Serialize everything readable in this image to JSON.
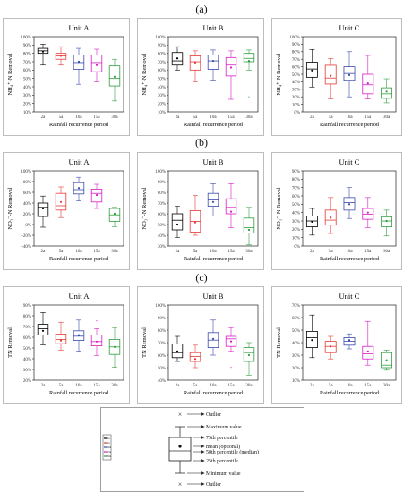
{
  "sections": [
    "(a)",
    "(b)",
    "(c)"
  ],
  "categories": [
    "2a",
    "5a",
    "10a",
    "15a",
    "30a"
  ],
  "category_colors": [
    "#000000",
    "#e53935",
    "#3949ab",
    "#d81bc4",
    "#2e9d3f"
  ],
  "chart_data": [
    {
      "type": "box",
      "panel": "a-A",
      "title": "Unit A",
      "xlabel": "Rainfall recurrence period",
      "ylabel": "NH₄⁺-N Removal",
      "ylim": [
        10,
        100
      ],
      "yticks": [
        "10%",
        "20%",
        "30%",
        "40%",
        "50%",
        "60%",
        "70%",
        "80%",
        "90%",
        "100%"
      ],
      "boxes": [
        {
          "cat": "2a",
          "min": 66,
          "q1": 80,
          "median": 83,
          "q3": 86,
          "max": 91,
          "mean": 82,
          "outliers": []
        },
        {
          "cat": "5a",
          "min": 66,
          "q1": 73,
          "median": 77,
          "q3": 80,
          "max": 88,
          "mean": 77,
          "outliers": []
        },
        {
          "cat": "10a",
          "min": 43,
          "q1": 61,
          "median": 69,
          "q3": 78,
          "max": 86,
          "mean": 70,
          "outliers": []
        },
        {
          "cat": "15a",
          "min": 46,
          "q1": 58,
          "median": 69,
          "q3": 78,
          "max": 85,
          "mean": 66,
          "outliers": []
        },
        {
          "cat": "30a",
          "min": 23,
          "q1": 41,
          "median": 50,
          "q3": 65,
          "max": 73,
          "mean": 52,
          "outliers": []
        }
      ]
    },
    {
      "type": "box",
      "panel": "a-B",
      "title": "Unit B",
      "xlabel": "Rainfall recurrence period",
      "ylabel": "NH₄⁺-N Removal",
      "ylim": [
        10,
        100
      ],
      "yticks": [
        "10%",
        "20%",
        "30%",
        "40%",
        "50%",
        "60%",
        "70%",
        "80%",
        "90%",
        "100%"
      ],
      "boxes": [
        {
          "cat": "2a",
          "min": 60,
          "q1": 66,
          "median": 71,
          "q3": 81,
          "max": 88,
          "mean": 74,
          "outliers": []
        },
        {
          "cat": "5a",
          "min": 46,
          "q1": 60,
          "median": 70,
          "q3": 77,
          "max": 83,
          "mean": 69,
          "outliers": []
        },
        {
          "cat": "10a",
          "min": 48,
          "q1": 61,
          "median": 71,
          "q3": 78,
          "max": 84,
          "mean": 71,
          "outliers": []
        },
        {
          "cat": "15a",
          "min": 25,
          "q1": 53,
          "median": 66,
          "q3": 75,
          "max": 83,
          "mean": 63,
          "outliers": []
        },
        {
          "cat": "30a",
          "min": 60,
          "q1": 70,
          "median": 74,
          "q3": 80,
          "max": 84,
          "mean": 71,
          "outliers": [
            28
          ]
        }
      ]
    },
    {
      "type": "box",
      "panel": "a-C",
      "title": "Unit C",
      "xlabel": "Rainfall recurrence period",
      "ylabel": "NH₄⁺-N Removal",
      "ylim": [
        0,
        100
      ],
      "yticks": [
        "0%",
        "10%",
        "20%",
        "30%",
        "40%",
        "50%",
        "60%",
        "70%",
        "80%",
        "90%",
        "100%"
      ],
      "boxes": [
        {
          "cat": "2a",
          "min": 33,
          "q1": 46,
          "median": 57,
          "q3": 66,
          "max": 83,
          "mean": 55,
          "outliers": []
        },
        {
          "cat": "5a",
          "min": 17,
          "q1": 37,
          "median": 45,
          "q3": 62,
          "max": 71,
          "mean": 48,
          "outliers": []
        },
        {
          "cat": "10a",
          "min": 20,
          "q1": 42,
          "median": 51,
          "q3": 60,
          "max": 80,
          "mean": 49,
          "outliers": []
        },
        {
          "cat": "15a",
          "min": 17,
          "q1": 24,
          "median": 36,
          "q3": 50,
          "max": 75,
          "mean": 38,
          "outliers": []
        },
        {
          "cat": "30a",
          "min": 12,
          "q1": 18,
          "median": 24,
          "q3": 32,
          "max": 44,
          "mean": 27,
          "outliers": []
        }
      ]
    },
    {
      "type": "box",
      "panel": "b-A",
      "title": "Unit A",
      "xlabel": "Rainfall recurrence period",
      "ylabel": "NO₃⁻-N Removal",
      "ylim": [
        -40,
        100
      ],
      "yticks": [
        "-40%",
        "-20%",
        "0%",
        "20%",
        "40%",
        "60%",
        "80%",
        "100%"
      ],
      "boxes": [
        {
          "cat": "2a",
          "min": -5,
          "q1": 15,
          "median": 32,
          "q3": 40,
          "max": 53,
          "mean": 30,
          "outliers": []
        },
        {
          "cat": "5a",
          "min": 13,
          "q1": 27,
          "median": 35,
          "q3": 58,
          "max": 70,
          "mean": 42,
          "outliers": []
        },
        {
          "cat": "10a",
          "min": 44,
          "q1": 57,
          "median": 65,
          "q3": 78,
          "max": 88,
          "mean": 68,
          "outliers": []
        },
        {
          "cat": "15a",
          "min": 30,
          "q1": 42,
          "median": 58,
          "q3": 66,
          "max": 75,
          "mean": 55,
          "outliers": []
        },
        {
          "cat": "30a",
          "min": -4,
          "q1": 6,
          "median": 18,
          "q3": 30,
          "max": 32,
          "mean": 20,
          "outliers": []
        }
      ]
    },
    {
      "type": "box",
      "panel": "b-B",
      "title": "Unit B",
      "xlabel": "Rainfall recurrence period",
      "ylabel": "NO₃⁻-N Removal",
      "ylim": [
        30,
        100
      ],
      "yticks": [
        "30%",
        "40%",
        "50%",
        "60%",
        "70%",
        "80%",
        "90%",
        "100%"
      ],
      "boxes": [
        {
          "cat": "2a",
          "min": 38,
          "q1": 45,
          "median": 54,
          "q3": 60,
          "max": 67,
          "mean": 50,
          "outliers": []
        },
        {
          "cat": "5a",
          "min": 40,
          "q1": 43,
          "median": 53,
          "q3": 63,
          "max": 77,
          "mean": 52,
          "outliers": []
        },
        {
          "cat": "10a",
          "min": 58,
          "q1": 67,
          "median": 73,
          "q3": 79,
          "max": 88,
          "mean": 71,
          "outliers": []
        },
        {
          "cat": "15a",
          "min": 47,
          "q1": 60,
          "median": 66,
          "q3": 74,
          "max": 88,
          "mean": 62,
          "outliers": []
        },
        {
          "cat": "30a",
          "min": 31,
          "q1": 42,
          "median": 47,
          "q3": 56,
          "max": 66,
          "mean": 45,
          "outliers": []
        }
      ]
    },
    {
      "type": "box",
      "panel": "b-C",
      "title": "Unit C",
      "xlabel": "Rainfall recurrence period",
      "ylabel": "NO₃⁻-N Removal",
      "ylim": [
        0,
        90
      ],
      "yticks": [
        "0%",
        "10%",
        "20%",
        "30%",
        "40%",
        "50%",
        "60%",
        "70%",
        "80%",
        "90%"
      ],
      "boxes": [
        {
          "cat": "2a",
          "min": 13,
          "q1": 23,
          "median": 30,
          "q3": 36,
          "max": 45,
          "mean": 29,
          "outliers": []
        },
        {
          "cat": "5a",
          "min": 15,
          "q1": 25,
          "median": 31,
          "q3": 43,
          "max": 58,
          "mean": 34,
          "outliers": []
        },
        {
          "cat": "10a",
          "min": 33,
          "q1": 43,
          "median": 52,
          "q3": 58,
          "max": 70,
          "mean": 50,
          "outliers": []
        },
        {
          "cat": "15a",
          "min": 22,
          "q1": 32,
          "median": 38,
          "q3": 45,
          "max": 58,
          "mean": 40,
          "outliers": []
        },
        {
          "cat": "30a",
          "min": 12,
          "q1": 23,
          "median": 30,
          "q3": 35,
          "max": 43,
          "mean": 30,
          "outliers": []
        }
      ]
    },
    {
      "type": "box",
      "panel": "c-A",
      "title": "Unit A",
      "xlabel": "Rainfall recurrence period",
      "ylabel": "TN Removal",
      "ylim": [
        20,
        90
      ],
      "yticks": [
        "20%",
        "30%",
        "40%",
        "50%",
        "60%",
        "70%",
        "80%",
        "90%"
      ],
      "boxes": [
        {
          "cat": "2a",
          "min": 53,
          "q1": 62,
          "median": 68,
          "q3": 72,
          "max": 83,
          "mean": 66,
          "outliers": []
        },
        {
          "cat": "5a",
          "min": 48,
          "q1": 54,
          "median": 58,
          "q3": 63,
          "max": 74,
          "mean": 57,
          "outliers": []
        },
        {
          "cat": "10a",
          "min": 47,
          "q1": 57,
          "median": 61,
          "q3": 66,
          "max": 76,
          "mean": 62,
          "outliers": []
        },
        {
          "cat": "15a",
          "min": 43,
          "q1": 52,
          "median": 56,
          "q3": 62,
          "max": 68,
          "mean": 56,
          "outliers": [
            75
          ]
        },
        {
          "cat": "30a",
          "min": 32,
          "q1": 44,
          "median": 51,
          "q3": 58,
          "max": 69,
          "mean": 51,
          "outliers": []
        }
      ]
    },
    {
      "type": "box",
      "panel": "c-B",
      "title": "Unit B",
      "xlabel": "Rainfall recurrence period",
      "ylabel": "TN Removal",
      "ylim": [
        40,
        100
      ],
      "yticks": [
        "40%",
        "50%",
        "60%",
        "70%",
        "80%",
        "90%",
        "100%"
      ],
      "boxes": [
        {
          "cat": "2a",
          "min": 55,
          "q1": 58,
          "median": 62,
          "q3": 69,
          "max": 75,
          "mean": 63,
          "outliers": []
        },
        {
          "cat": "5a",
          "min": 50,
          "q1": 55,
          "median": 59,
          "q3": 62,
          "max": 68,
          "mean": 57,
          "outliers": []
        },
        {
          "cat": "10a",
          "min": 60,
          "q1": 66,
          "median": 72,
          "q3": 78,
          "max": 88,
          "mean": 73,
          "outliers": []
        },
        {
          "cat": "15a",
          "min": 63,
          "q1": 67,
          "median": 73,
          "q3": 75,
          "max": 82,
          "mean": 71,
          "outliers": [
            50
          ]
        },
        {
          "cat": "30a",
          "min": 44,
          "q1": 55,
          "median": 62,
          "q3": 66,
          "max": 70,
          "mean": 60,
          "outliers": []
        }
      ]
    },
    {
      "type": "box",
      "panel": "c-C",
      "title": "Unit C",
      "xlabel": "Rainfall recurrence period",
      "ylabel": "TN Removal",
      "ylim": [
        10,
        70
      ],
      "yticks": [
        "10%",
        "20%",
        "30%",
        "40%",
        "50%",
        "60%",
        "70%"
      ],
      "boxes": [
        {
          "cat": "2a",
          "min": 28,
          "q1": 36,
          "median": 44,
          "q3": 49,
          "max": 62,
          "mean": 42,
          "outliers": []
        },
        {
          "cat": "5a",
          "min": 27,
          "q1": 32,
          "median": 37,
          "q3": 41,
          "max": 45,
          "mean": 37,
          "outliers": []
        },
        {
          "cat": "10a",
          "min": 35,
          "q1": 38,
          "median": 41,
          "q3": 44,
          "max": 47,
          "mean": 42,
          "outliers": []
        },
        {
          "cat": "15a",
          "min": 22,
          "q1": 27,
          "median": 31,
          "q3": 37,
          "max": 57,
          "mean": 33,
          "outliers": []
        },
        {
          "cat": "30a",
          "min": 18,
          "q1": 20,
          "median": 22,
          "q3": 32,
          "max": 34,
          "mean": 26,
          "outliers": []
        }
      ]
    }
  ],
  "legend": {
    "series": [
      "2a",
      "5a",
      "10a",
      "15a",
      "30a"
    ],
    "labels": {
      "outlier_top": "Outlier",
      "maximum": "Maximum value",
      "p75": "75th percentile",
      "mean": "mean (optional)",
      "median": "50th percentile (median)",
      "p25": "25th percentile",
      "minimum": "Minimum value",
      "outlier_bottom": "Outlier"
    }
  }
}
